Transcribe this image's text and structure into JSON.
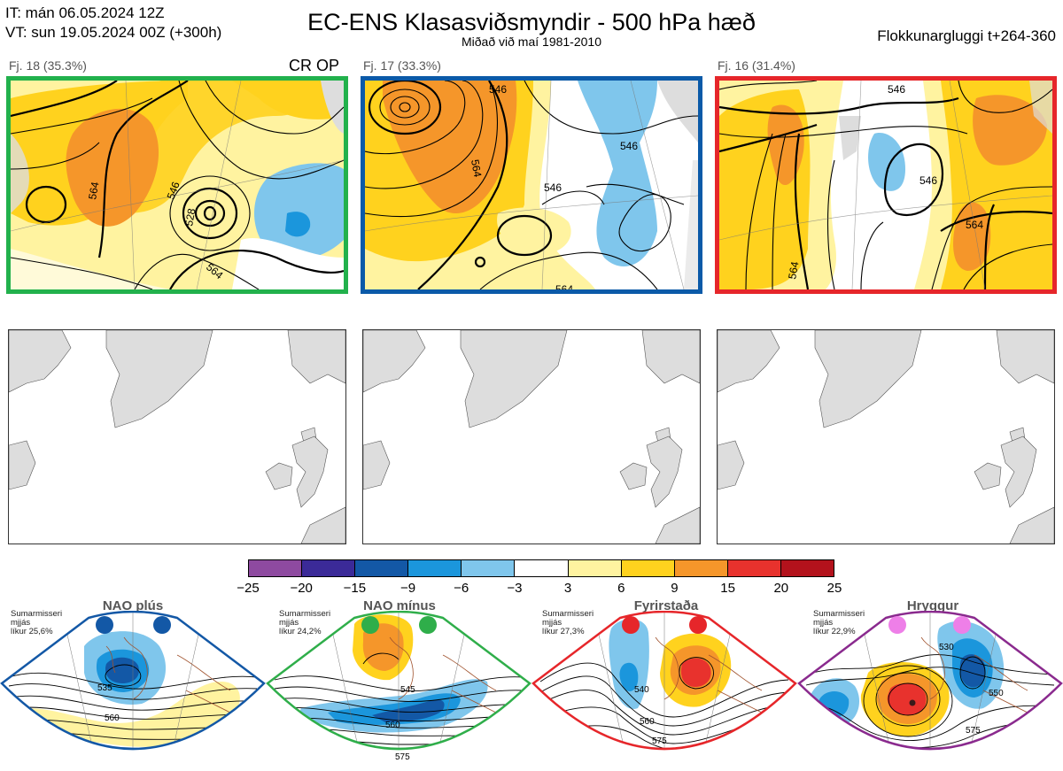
{
  "header": {
    "it_line": "IT: mán 06.05.2024 12Z",
    "vt_line": "VT: sun 19.05.2024 00Z  (+300h)",
    "title": "EC-ENS Klasasviðsmyndir - 500 hPa hæð",
    "subtitle": "Miðað við maí 1981-2010",
    "window": "Flokkunargluggi t+264-360"
  },
  "clusters": [
    {
      "label": "Fj. 18 (35.3%)",
      "border_color": "#22b14c",
      "badge": "CR OP",
      "contours": [
        "546",
        "564",
        "528"
      ]
    },
    {
      "label": "Fj. 17 (33.3%)",
      "border_color": "#0b5aa8",
      "badge": "",
      "contours": [
        "546",
        "564",
        "546",
        "546"
      ]
    },
    {
      "label": "Fj. 16 (31.4%)",
      "border_color": "#e6262a",
      "badge": "",
      "contours": [
        "546",
        "564",
        "546",
        "564"
      ]
    }
  ],
  "colorbar": {
    "colors": [
      "#8e4aa0",
      "#3b2a98",
      "#1358a6",
      "#1b96dc",
      "#7fc6ec",
      "#ffffff",
      "#fff3a0",
      "#ffd21e",
      "#f5962a",
      "#e8322d",
      "#b3121c"
    ],
    "ticks": [
      "−25",
      "−20",
      "−15",
      "−9",
      "−6",
      "−3",
      "3",
      "6",
      "9",
      "15",
      "20",
      "25"
    ]
  },
  "regimes": [
    {
      "name": "NAO plús",
      "note": [
        "Sumarmisseri",
        "mjjás",
        "líkur 25,6%"
      ],
      "color": "#1358a6",
      "dot_color": "#1358a6",
      "contours": [
        "535",
        "560"
      ]
    },
    {
      "name": "NAO mínus",
      "note": [
        "Sumarmisseri",
        "mjjás",
        "líkur 24,2%"
      ],
      "color": "#2fae4a",
      "dot_color": "#2fae4a",
      "contours": [
        "545",
        "560",
        "575"
      ]
    },
    {
      "name": "Fyrirstaða",
      "note": [
        "Sumarmisseri",
        "mjjás",
        "líkur 27,3%"
      ],
      "color": "#e6262a",
      "dot_color": "#e6262a",
      "contours": [
        "540",
        "560",
        "575"
      ]
    },
    {
      "name": "Hryggur",
      "note": [
        "Sumarmisseri",
        "mjjás",
        "líkur 22,9%"
      ],
      "color": "#8a2a8e",
      "dot_color": "#ee7fe8",
      "contours": [
        "530",
        "550",
        "575"
      ]
    }
  ]
}
